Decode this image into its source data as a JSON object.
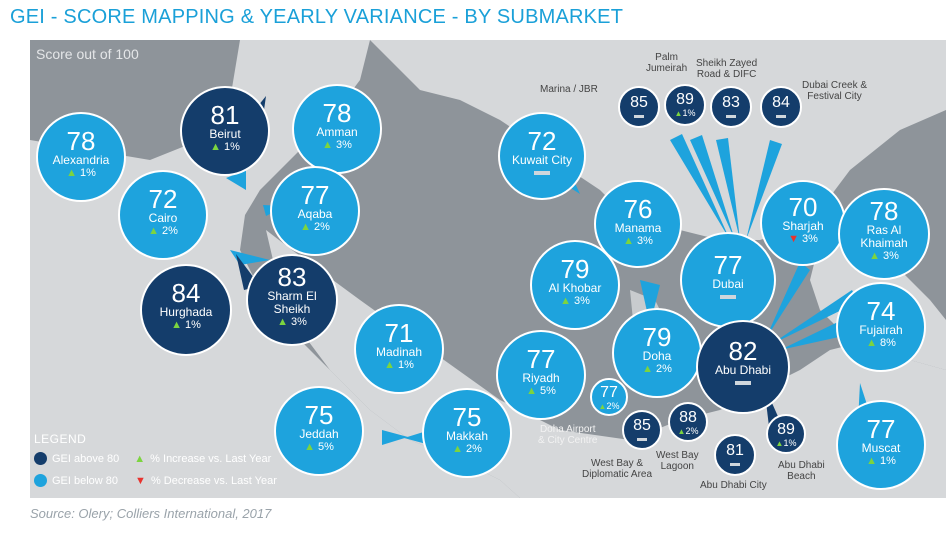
{
  "title": "GEI - SCORE MAPPING & YEARLY VARIANCE - BY SUBMARKET",
  "score_note": "Score out of 100",
  "source": "Source: Olery; Colliers International, 2017",
  "colors": {
    "above80": "#143d6b",
    "below80": "#1ea3dd",
    "increase": "#7cd43f",
    "decrease": "#e8332e",
    "map_bg": "#8e949a",
    "land": "#d6d8da"
  },
  "legend": {
    "title": "LEGEND",
    "above80": "GEI above 80",
    "below80": "GEI below 80",
    "increase": "% Increase vs. Last Year",
    "decrease": "% Decrease vs. Last Year"
  },
  "markets": {
    "alexandria": {
      "name": "Alexandria",
      "score": "78",
      "change": "1%",
      "trend": "up"
    },
    "beirut": {
      "name": "Beirut",
      "score": "81",
      "change": "1%",
      "trend": "up"
    },
    "amman": {
      "name": "Amman",
      "score": "78",
      "change": "3%",
      "trend": "up"
    },
    "cairo": {
      "name": "Cairo",
      "score": "72",
      "change": "2%",
      "trend": "up"
    },
    "aqaba": {
      "name": "Aqaba",
      "score": "77",
      "change": "2%",
      "trend": "up"
    },
    "hurghada": {
      "name": "Hurghada",
      "score": "84",
      "change": "1%",
      "trend": "up"
    },
    "sharm": {
      "name1": "Sharm El",
      "name2": "Sheikh",
      "score": "83",
      "change": "3%",
      "trend": "up"
    },
    "madinah": {
      "name": "Madinah",
      "score": "71",
      "change": "1%",
      "trend": "up"
    },
    "jeddah": {
      "name": "Jeddah",
      "score": "75",
      "change": "5%",
      "trend": "up"
    },
    "makkah": {
      "name": "Makkah",
      "score": "75",
      "change": "2%",
      "trend": "up"
    },
    "riyadh": {
      "name": "Riyadh",
      "score": "77",
      "change": "5%",
      "trend": "up"
    },
    "kuwait": {
      "name": "Kuwait City",
      "score": "72",
      "trend": "flat"
    },
    "manama": {
      "name": "Manama",
      "score": "76",
      "change": "3%",
      "trend": "up"
    },
    "alkhobar": {
      "name": "Al Khobar",
      "score": "79",
      "change": "3%",
      "trend": "up"
    },
    "doha": {
      "name": "Doha",
      "score": "79",
      "change": "2%",
      "trend": "up"
    },
    "dubai": {
      "name": "Dubai",
      "score": "77",
      "trend": "flat"
    },
    "sharjah": {
      "name": "Sharjah",
      "score": "70",
      "change": "3%",
      "trend": "down"
    },
    "rak": {
      "name1": "Ras Al",
      "name2": "Khaimah",
      "score": "78",
      "change": "3%",
      "trend": "up"
    },
    "fujairah": {
      "name": "Fujairah",
      "score": "74",
      "change": "8%",
      "trend": "up"
    },
    "abudhabi": {
      "name": "Abu Dhabi",
      "score": "82",
      "trend": "flat"
    },
    "muscat": {
      "name": "Muscat",
      "score": "77",
      "change": "1%",
      "trend": "up"
    },
    "marina": {
      "name": "Marina / JBR",
      "score": "85",
      "trend": "flat"
    },
    "palm": {
      "name1": "Palm",
      "name2": "Jumeirah",
      "score": "89",
      "change": "1%",
      "trend": "up"
    },
    "szr": {
      "name1": "Sheikh  Zayed",
      "name2": "Road & DIFC",
      "score": "83",
      "trend": "flat"
    },
    "creek": {
      "name1": "Dubai Creek &",
      "name2": "Festival City",
      "score": "84",
      "trend": "flat"
    },
    "doha_airport": {
      "name1": "Doha Airport",
      "name2": "& City Centre",
      "score": "77",
      "change": "2%",
      "trend": "up"
    },
    "westbay_dip": {
      "name1": "West Bay &",
      "name2": "Diplomatic Area",
      "score": "85",
      "trend": "flat"
    },
    "westbay_lagoon": {
      "name1": "West Bay",
      "name2": "Lagoon",
      "score": "88",
      "change": "2%",
      "trend": "up"
    },
    "ad_city": {
      "name": "Abu Dhabi City",
      "score": "81",
      "trend": "flat"
    },
    "ad_beach": {
      "name1": "Abu Dhabi",
      "name2": "Beach",
      "score": "89",
      "change": "1%",
      "trend": "up"
    }
  }
}
